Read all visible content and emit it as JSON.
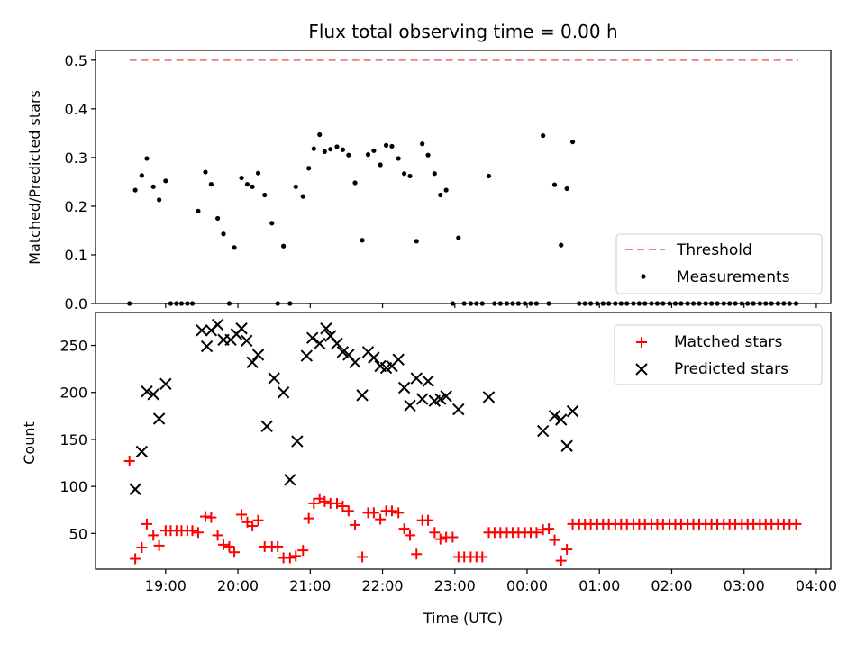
{
  "chart_data": [
    {
      "type": "scatter",
      "title": "Flux total observing time = 0.00 h",
      "ylabel": "Matched/Predicted stars",
      "xlabel": "",
      "ylim": [
        0,
        0.52
      ],
      "yticks": [
        "0.0",
        "0.1",
        "0.2",
        "0.3",
        "0.4",
        "0.5"
      ],
      "ytick_values": [
        0,
        0.1,
        0.2,
        0.3,
        0.4,
        0.5
      ],
      "grid": false,
      "legend_position": "lower-right",
      "threshold": {
        "name": "Threshold",
        "value": 0.5,
        "x_range": [
          -0.5,
          8.75
        ],
        "color": "#f08080",
        "style": "dashed"
      },
      "series": [
        {
          "name": "Measurements",
          "marker": "dot",
          "color": "#000000",
          "x": [
            -0.5,
            -0.42,
            -0.33,
            -0.26,
            -0.17,
            -0.09,
            0.0,
            0.07,
            0.15,
            0.22,
            0.3,
            0.37,
            0.45,
            0.55,
            0.63,
            0.72,
            0.8,
            0.88,
            0.95,
            1.05,
            1.13,
            1.2,
            1.28,
            1.37,
            1.47,
            1.55,
            1.63,
            1.72,
            1.8,
            1.9,
            1.98,
            2.05,
            2.13,
            2.2,
            2.28,
            2.37,
            2.45,
            2.53,
            2.62,
            2.72,
            2.8,
            2.88,
            2.97,
            3.05,
            3.13,
            3.22,
            3.3,
            3.38,
            3.47,
            3.55,
            3.63,
            3.72,
            3.8,
            3.88,
            3.97,
            4.05,
            4.13,
            4.22,
            4.3,
            4.38,
            4.47,
            4.55,
            4.63,
            4.72,
            4.8,
            4.88,
            4.97,
            5.05,
            5.13,
            5.22,
            5.3,
            5.38,
            5.47,
            5.55,
            5.63,
            5.72,
            5.8,
            5.88,
            5.97,
            6.05,
            6.13,
            6.22,
            6.3,
            6.38,
            6.47,
            6.55,
            6.63,
            6.72,
            6.8,
            6.88,
            6.97,
            7.05,
            7.13,
            7.22,
            7.3,
            7.38,
            7.47,
            7.55,
            7.63,
            7.72,
            7.8,
            7.88,
            7.97,
            8.05,
            8.13,
            8.22,
            8.3,
            8.38,
            8.47,
            8.55,
            8.63,
            8.72
          ],
          "y": [
            0.0,
            0.233,
            0.263,
            0.298,
            0.24,
            0.213,
            0.252,
            0.0,
            0.0,
            0.0,
            0.0,
            0.0,
            0.19,
            0.27,
            0.245,
            0.175,
            0.143,
            0.0,
            0.115,
            0.258,
            0.245,
            0.24,
            0.268,
            0.223,
            0.165,
            0.0,
            0.118,
            0.0,
            0.24,
            0.22,
            0.278,
            0.318,
            0.347,
            0.312,
            0.317,
            0.322,
            0.316,
            0.305,
            0.248,
            0.13,
            0.306,
            0.314,
            0.285,
            0.325,
            0.323,
            0.298,
            0.267,
            0.262,
            0.128,
            0.328,
            0.305,
            0.267,
            0.223,
            0.233,
            0.0,
            0.135,
            0.0,
            0.0,
            0.0,
            0.0,
            0.262,
            0.0,
            0.0,
            0.0,
            0.0,
            0.0,
            0.0,
            0.0,
            0.0,
            0.345,
            0.0,
            0.244,
            0.12,
            0.236,
            0.332,
            0.0,
            0.0,
            0.0,
            0.0,
            0.0,
            0.0,
            0.0,
            0.0,
            0.0,
            0.0,
            0.0,
            0.0,
            0.0,
            0.0,
            0.0,
            0.0,
            0.0,
            0.0,
            0.0,
            0.0,
            0.0,
            0.0,
            0.0,
            0.0,
            0.0,
            0.0,
            0.0,
            0.0,
            0.0,
            0.0,
            0.0,
            0.0,
            0.0,
            0.0,
            0.0,
            0.0,
            0.0
          ]
        }
      ]
    },
    {
      "type": "scatter",
      "title": "",
      "ylabel": "Count",
      "xlabel": "Time (UTC)",
      "ylim": [
        12,
        285
      ],
      "yticks": [
        "50",
        "100",
        "150",
        "200",
        "250"
      ],
      "ytick_values": [
        50,
        100,
        150,
        200,
        250
      ],
      "x_tick_labels": [
        "19:00",
        "20:00",
        "21:00",
        "22:00",
        "23:00",
        "00:00",
        "01:00",
        "02:00",
        "03:00",
        "04:00"
      ],
      "x_tick_positions": [
        0,
        1,
        2,
        3,
        4,
        5,
        6,
        7,
        8,
        9
      ],
      "grid": false,
      "legend_position": "upper-right",
      "series": [
        {
          "name": "Matched stars",
          "marker": "plus",
          "color": "#ff0000",
          "x": [
            -0.5,
            -0.42,
            -0.33,
            -0.26,
            -0.17,
            -0.09,
            0.0,
            0.07,
            0.15,
            0.22,
            0.3,
            0.37,
            0.45,
            0.55,
            0.63,
            0.72,
            0.8,
            0.88,
            0.95,
            1.05,
            1.13,
            1.2,
            1.28,
            1.37,
            1.47,
            1.55,
            1.63,
            1.72,
            1.8,
            1.9,
            1.98,
            2.05,
            2.13,
            2.2,
            2.28,
            2.37,
            2.45,
            2.53,
            2.62,
            2.72,
            2.8,
            2.88,
            2.97,
            3.05,
            3.13,
            3.22,
            3.3,
            3.38,
            3.47,
            3.55,
            3.63,
            3.72,
            3.8,
            3.88,
            3.97,
            4.05,
            4.13,
            4.22,
            4.3,
            4.38,
            4.47,
            4.55,
            4.63,
            4.72,
            4.8,
            4.88,
            4.97,
            5.05,
            5.13,
            5.22,
            5.3,
            5.38,
            5.47,
            5.55,
            5.63,
            5.72,
            5.8,
            5.88,
            5.97,
            6.05,
            6.13,
            6.22,
            6.3,
            6.38,
            6.47,
            6.55,
            6.63,
            6.72,
            6.8,
            6.88,
            6.97,
            7.05,
            7.13,
            7.22,
            7.3,
            7.38,
            7.47,
            7.55,
            7.63,
            7.72,
            7.8,
            7.88,
            7.97,
            8.05,
            8.13,
            8.22,
            8.3,
            8.38,
            8.47,
            8.55,
            8.63,
            8.72
          ],
          "y": [
            127,
            23,
            35,
            60,
            48,
            37,
            53,
            53,
            53,
            53,
            53,
            53,
            51,
            68,
            67,
            48,
            38,
            36,
            30,
            70,
            62,
            58,
            64,
            36,
            36,
            36,
            24,
            24,
            26,
            32,
            66,
            82,
            87,
            84,
            82,
            82,
            79,
            74,
            59,
            25,
            72,
            72,
            65,
            74,
            74,
            72,
            55,
            48,
            28,
            64,
            64,
            51,
            44,
            46,
            46,
            25,
            25,
            25,
            25,
            25,
            51,
            51,
            51,
            51,
            51,
            51,
            51,
            51,
            51,
            54,
            55,
            43,
            21,
            33,
            60,
            60,
            60,
            60,
            60,
            60,
            60,
            60,
            60,
            60,
            60,
            60,
            60,
            60,
            60,
            60,
            60,
            60,
            60,
            60,
            60,
            60,
            60,
            60,
            60,
            60,
            60,
            60,
            60,
            60,
            60,
            60,
            60,
            60,
            60,
            60,
            60,
            60
          ]
        },
        {
          "name": "Predicted stars",
          "marker": "x",
          "color": "#000000",
          "x": [
            -0.42,
            -0.33,
            -0.26,
            -0.17,
            -0.09,
            0.0,
            0.5,
            0.57,
            0.63,
            0.72,
            0.8,
            0.9,
            0.98,
            1.05,
            1.12,
            1.2,
            1.28,
            1.4,
            1.5,
            1.63,
            1.72,
            1.82,
            1.95,
            2.03,
            2.13,
            2.22,
            2.28,
            2.37,
            2.45,
            2.53,
            2.62,
            2.72,
            2.8,
            2.88,
            2.97,
            3.05,
            3.13,
            3.22,
            3.3,
            3.38,
            3.47,
            3.55,
            3.63,
            3.72,
            3.8,
            3.88,
            4.05,
            4.47,
            5.22,
            5.38,
            5.47,
            5.55,
            5.63
          ],
          "y": [
            97,
            137,
            201,
            198,
            172,
            209,
            266,
            249,
            266,
            272,
            256,
            256,
            262,
            268,
            255,
            232,
            240,
            164,
            215,
            200,
            107,
            148,
            239,
            258,
            252,
            268,
            260,
            252,
            243,
            240,
            232,
            197,
            243,
            237,
            228,
            226,
            228,
            235,
            205,
            186,
            215,
            193,
            212,
            191,
            193,
            196,
            182,
            195,
            159,
            175,
            171,
            143,
            180
          ]
        }
      ]
    }
  ]
}
